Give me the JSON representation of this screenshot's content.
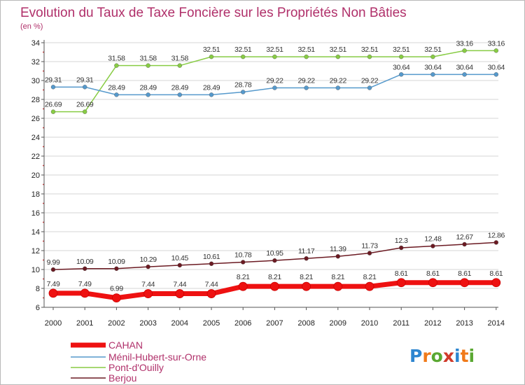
{
  "chart_data": {
    "type": "line",
    "title": "Evolution du Taux de Taxe Foncière sur les Propriétés Non Bâties",
    "ylabel": "(en %)",
    "ylim": [
      6,
      34
    ],
    "yticks": [
      6,
      8,
      10,
      12,
      14,
      16,
      18,
      20,
      22,
      24,
      26,
      28,
      30,
      32,
      34
    ],
    "x": [
      "2000",
      "2001",
      "2002",
      "2003",
      "2004",
      "2005",
      "2006",
      "2007",
      "2008",
      "2009",
      "2010",
      "2011",
      "2012",
      "2013",
      "2014"
    ],
    "series": [
      {
        "name": "Pont-d'Ouilly",
        "color": "#88cc44",
        "values": [
          26.69,
          26.69,
          31.58,
          31.58,
          31.58,
          32.51,
          32.51,
          32.51,
          32.51,
          32.51,
          32.51,
          32.51,
          32.51,
          33.16,
          33.16
        ],
        "labels": [
          "26.69",
          "26.69",
          "31.58",
          "31.58",
          "31.58",
          "32.51",
          "32.51",
          "32.51",
          "32.51",
          "32.51",
          "32.51",
          "32.51",
          "32.51",
          "33.16",
          "33.16"
        ]
      },
      {
        "name": "Ménil-Hubert-sur-Orne",
        "color": "#5599cc",
        "values": [
          29.31,
          29.31,
          28.49,
          28.49,
          28.49,
          28.49,
          28.78,
          29.22,
          29.22,
          29.22,
          29.22,
          30.64,
          30.64,
          30.64,
          30.64
        ],
        "labels": [
          "29.31",
          "29.31",
          "28.49",
          "28.49",
          "28.49",
          "28.49",
          "28.78",
          "29.22",
          "29.22",
          "29.22",
          "29.22",
          "30.64",
          "30.64",
          "30.64",
          "30.64"
        ]
      },
      {
        "name": "Berjou",
        "color": "#6b1a22",
        "values": [
          9.99,
          10.09,
          10.09,
          10.29,
          10.45,
          10.61,
          10.78,
          10.95,
          11.17,
          11.39,
          11.73,
          12.3,
          12.48,
          12.67,
          12.86
        ],
        "labels": [
          "9.99",
          "10.09",
          "10.09",
          "10.29",
          "10.45",
          "10.61",
          "10.78",
          "10.95",
          "11.17",
          "11.39",
          "11.73",
          "12.3",
          "12.48",
          "12.67",
          "12.86"
        ]
      },
      {
        "name": "CAHAN",
        "color": "#ee1111",
        "values": [
          7.49,
          7.49,
          6.99,
          7.44,
          7.44,
          7.44,
          8.21,
          8.21,
          8.21,
          8.21,
          8.21,
          8.61,
          8.61,
          8.61,
          8.61
        ],
        "labels": [
          "7.49",
          "7.49",
          "6.99",
          "7.44",
          "7.44",
          "7.44",
          "8.21",
          "8.21",
          "8.21",
          "8.21",
          "8.21",
          "8.61",
          "8.61",
          "8.61",
          "8.61"
        ]
      }
    ],
    "legend": {
      "position": "bottom-left",
      "order": [
        "CAHAN",
        "Ménil-Hubert-sur-Orne",
        "Pont-d'Ouilly",
        "Berjou"
      ]
    }
  },
  "logo": {
    "parts": [
      "P",
      "r",
      "o",
      "x",
      "i",
      "t",
      "i"
    ],
    "colors": [
      "#2e86d0",
      "#f07a1a",
      "#5aa832",
      "#d03a2a",
      "#2e86d0",
      "#f07a1a",
      "#5aa832"
    ]
  }
}
